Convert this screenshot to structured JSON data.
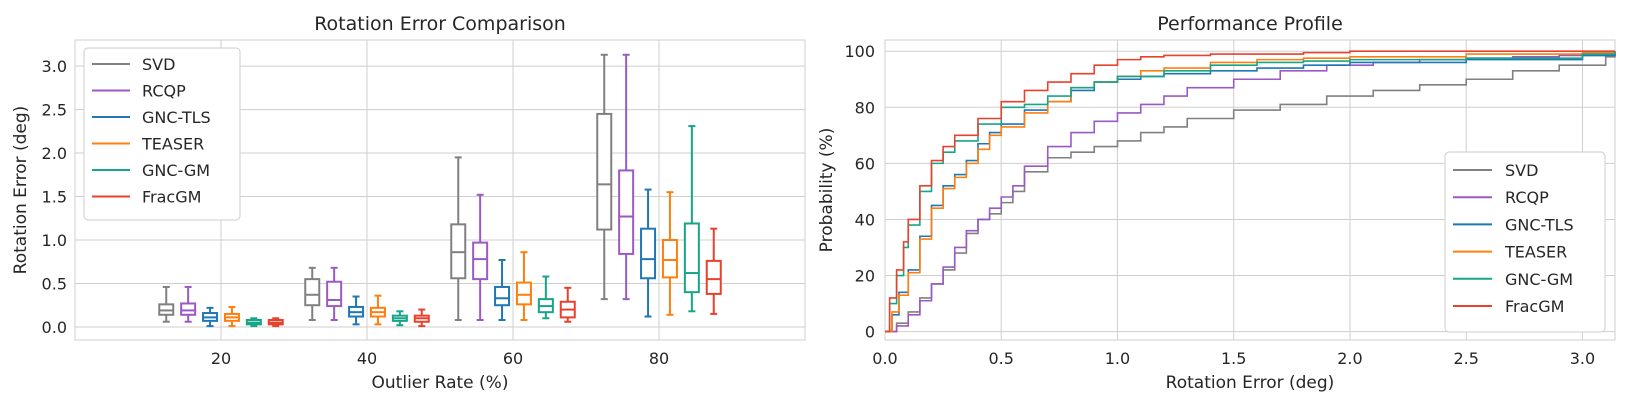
{
  "colors": {
    "SVD": "#808080",
    "RCQP": "#9b59c6",
    "GNC-TLS": "#1f77b4",
    "TEASER": "#ff7f0e",
    "GNC-GM": "#17a589",
    "FracGM": "#e8412c"
  },
  "chart_data": [
    {
      "type": "box",
      "title": "Rotation Error Comparison",
      "xlabel": "Outlier Rate (%)",
      "ylabel": "Rotation Error (deg)",
      "xlim": [
        0,
        100
      ],
      "ylim": [
        -0.15,
        3.3
      ],
      "xticks": [
        "20",
        "40",
        "60",
        "80"
      ],
      "xtick_values": [
        20,
        40,
        60,
        80
      ],
      "yticks": [
        "0.0",
        "0.5",
        "1.0",
        "1.5",
        "2.0",
        "2.5",
        "3.0"
      ],
      "ytick_values": [
        0,
        0.5,
        1.0,
        1.5,
        2.0,
        2.5,
        3.0
      ],
      "group_offsets": [
        -7.5,
        -4.5,
        -1.5,
        1.5,
        4.5,
        7.5
      ],
      "legend": [
        "SVD",
        "RCQP",
        "GNC-TLS",
        "TEASER",
        "GNC-GM",
        "FracGM"
      ],
      "legend_loc": "upper-left",
      "series": [
        {
          "name": "SVD",
          "boxes": [
            {
              "x": 20,
              "min": 0.06,
              "q1": 0.14,
              "median": 0.19,
              "q3": 0.26,
              "max": 0.46
            },
            {
              "x": 40,
              "min": 0.08,
              "q1": 0.25,
              "median": 0.37,
              "q3": 0.55,
              "max": 0.68
            },
            {
              "x": 60,
              "min": 0.08,
              "q1": 0.56,
              "median": 0.86,
              "q3": 1.18,
              "max": 1.95
            },
            {
              "x": 80,
              "min": 0.32,
              "q1": 1.12,
              "median": 1.64,
              "q3": 2.45,
              "max": 3.13
            }
          ]
        },
        {
          "name": "RCQP",
          "boxes": [
            {
              "x": 20,
              "min": 0.06,
              "q1": 0.14,
              "median": 0.19,
              "q3": 0.27,
              "max": 0.46
            },
            {
              "x": 40,
              "min": 0.08,
              "q1": 0.24,
              "median": 0.31,
              "q3": 0.52,
              "max": 0.68
            },
            {
              "x": 60,
              "min": 0.08,
              "q1": 0.55,
              "median": 0.78,
              "q3": 0.97,
              "max": 1.52
            },
            {
              "x": 80,
              "min": 0.32,
              "q1": 0.84,
              "median": 1.27,
              "q3": 1.8,
              "max": 3.13
            }
          ]
        },
        {
          "name": "GNC-TLS",
          "boxes": [
            {
              "x": 20,
              "min": 0.01,
              "q1": 0.07,
              "median": 0.11,
              "q3": 0.16,
              "max": 0.22
            },
            {
              "x": 40,
              "min": 0.03,
              "q1": 0.12,
              "median": 0.17,
              "q3": 0.23,
              "max": 0.35
            },
            {
              "x": 60,
              "min": 0.08,
              "q1": 0.25,
              "median": 0.33,
              "q3": 0.46,
              "max": 0.77
            },
            {
              "x": 80,
              "min": 0.12,
              "q1": 0.56,
              "median": 0.78,
              "q3": 1.13,
              "max": 1.58
            }
          ]
        },
        {
          "name": "TEASER",
          "boxes": [
            {
              "x": 20,
              "min": 0.01,
              "q1": 0.07,
              "median": 0.11,
              "q3": 0.15,
              "max": 0.23
            },
            {
              "x": 40,
              "min": 0.03,
              "q1": 0.12,
              "median": 0.17,
              "q3": 0.22,
              "max": 0.36
            },
            {
              "x": 60,
              "min": 0.08,
              "q1": 0.26,
              "median": 0.37,
              "q3": 0.51,
              "max": 0.86
            },
            {
              "x": 80,
              "min": 0.14,
              "q1": 0.57,
              "median": 0.77,
              "q3": 1.0,
              "max": 1.55
            }
          ]
        },
        {
          "name": "GNC-GM",
          "boxes": [
            {
              "x": 20,
              "min": 0.01,
              "q1": 0.03,
              "median": 0.05,
              "q3": 0.08,
              "max": 0.1
            },
            {
              "x": 40,
              "min": 0.02,
              "q1": 0.07,
              "median": 0.1,
              "q3": 0.13,
              "max": 0.18
            },
            {
              "x": 60,
              "min": 0.1,
              "q1": 0.17,
              "median": 0.24,
              "q3": 0.32,
              "max": 0.58
            },
            {
              "x": 80,
              "min": 0.18,
              "q1": 0.4,
              "median": 0.62,
              "q3": 1.19,
              "max": 2.31
            }
          ]
        },
        {
          "name": "FracGM",
          "boxes": [
            {
              "x": 20,
              "min": 0.01,
              "q1": 0.03,
              "median": 0.05,
              "q3": 0.08,
              "max": 0.1
            },
            {
              "x": 40,
              "min": 0.01,
              "q1": 0.06,
              "median": 0.1,
              "q3": 0.13,
              "max": 0.2
            },
            {
              "x": 60,
              "min": 0.06,
              "q1": 0.11,
              "median": 0.2,
              "q3": 0.29,
              "max": 0.45
            },
            {
              "x": 80,
              "min": 0.15,
              "q1": 0.38,
              "median": 0.55,
              "q3": 0.76,
              "max": 1.13
            }
          ]
        }
      ]
    },
    {
      "type": "line",
      "title": "Performance Profile",
      "xlabel": "Rotation Error (deg)",
      "ylabel": "Probability (%)",
      "xlim": [
        0,
        3.14
      ],
      "ylim": [
        -3,
        104
      ],
      "xticks": [
        "0.0",
        "0.5",
        "1.0",
        "1.5",
        "2.0",
        "2.5",
        "3.0"
      ],
      "xtick_values": [
        0,
        0.5,
        1.0,
        1.5,
        2.0,
        2.5,
        3.0
      ],
      "yticks": [
        "0",
        "20",
        "40",
        "60",
        "80",
        "100"
      ],
      "ytick_values": [
        0,
        20,
        40,
        60,
        80,
        100
      ],
      "legend": [
        "SVD",
        "RCQP",
        "GNC-TLS",
        "TEASER",
        "GNC-GM",
        "FracGM"
      ],
      "legend_loc": "lower-right",
      "series": [
        {
          "name": "SVD",
          "x": [
            0,
            0.05,
            0.1,
            0.15,
            0.2,
            0.25,
            0.3,
            0.35,
            0.4,
            0.45,
            0.5,
            0.55,
            0.6,
            0.7,
            0.8,
            0.9,
            1.0,
            1.1,
            1.2,
            1.3,
            1.5,
            1.7,
            1.9,
            2.1,
            2.3,
            2.5,
            2.7,
            2.9,
            3.1,
            3.14
          ],
          "y": [
            0,
            3,
            7,
            12,
            17,
            22,
            28,
            35,
            40,
            42,
            46,
            50,
            57,
            62,
            64,
            66,
            68,
            71,
            73,
            76,
            79,
            81,
            84,
            86,
            88,
            90,
            93,
            95,
            98,
            99
          ]
        },
        {
          "name": "RCQP",
          "x": [
            0,
            0.05,
            0.1,
            0.15,
            0.2,
            0.25,
            0.3,
            0.35,
            0.4,
            0.45,
            0.5,
            0.55,
            0.6,
            0.7,
            0.8,
            0.9,
            1.0,
            1.1,
            1.2,
            1.3,
            1.5,
            1.7,
            1.9,
            2.1,
            2.3,
            2.5,
            2.7,
            2.9,
            3.1,
            3.14
          ],
          "y": [
            0,
            2,
            6,
            11,
            17,
            23,
            30,
            36,
            40,
            44,
            48,
            52,
            59,
            66,
            71,
            75,
            78,
            81,
            84,
            87,
            90,
            93,
            95,
            96,
            97,
            97.5,
            98,
            98.5,
            99,
            99.5
          ]
        },
        {
          "name": "GNC-TLS",
          "x": [
            0,
            0.03,
            0.06,
            0.1,
            0.15,
            0.2,
            0.25,
            0.3,
            0.35,
            0.4,
            0.45,
            0.5,
            0.6,
            0.7,
            0.8,
            0.9,
            1.0,
            1.1,
            1.2,
            1.4,
            1.6,
            1.8,
            2.0,
            2.5,
            3.0,
            3.14
          ],
          "y": [
            0,
            6,
            14,
            22,
            34,
            45,
            52,
            56,
            61,
            67,
            71,
            74,
            79,
            82,
            86,
            89,
            90,
            91,
            92,
            93,
            94,
            95,
            96,
            97,
            98.5,
            100
          ]
        },
        {
          "name": "TEASER",
          "x": [
            0,
            0.03,
            0.06,
            0.1,
            0.15,
            0.2,
            0.25,
            0.3,
            0.35,
            0.4,
            0.45,
            0.5,
            0.6,
            0.7,
            0.8,
            0.9,
            1.0,
            1.1,
            1.2,
            1.4,
            1.6,
            1.8,
            2.0,
            2.5,
            3.0,
            3.14
          ],
          "y": [
            0,
            7,
            13,
            21,
            33,
            44,
            51,
            55,
            60,
            65,
            70,
            73,
            78,
            82,
            87,
            89,
            91,
            93,
            94,
            96,
            97,
            97.5,
            98,
            99,
            99.5,
            100
          ]
        },
        {
          "name": "GNC-GM",
          "x": [
            0,
            0.02,
            0.05,
            0.08,
            0.1,
            0.15,
            0.2,
            0.25,
            0.3,
            0.4,
            0.5,
            0.6,
            0.7,
            0.8,
            0.9,
            1.0,
            1.2,
            1.4,
            1.6,
            1.8,
            2.0,
            2.5,
            3.0,
            3.14
          ],
          "y": [
            0,
            10,
            20,
            30,
            38,
            50,
            60,
            64,
            68,
            74,
            80,
            81,
            84,
            87,
            89,
            91,
            93,
            95,
            96,
            96.5,
            97,
            97.5,
            99,
            100
          ]
        },
        {
          "name": "FracGM",
          "x": [
            0,
            0.02,
            0.05,
            0.08,
            0.1,
            0.15,
            0.2,
            0.25,
            0.3,
            0.4,
            0.5,
            0.6,
            0.7,
            0.8,
            0.9,
            1.0,
            1.1,
            1.2,
            1.4,
            1.6,
            1.8,
            2.0,
            2.5,
            3.0,
            3.14
          ],
          "y": [
            0,
            12,
            22,
            32,
            40,
            52,
            61,
            66,
            70,
            76,
            82,
            86,
            89,
            92,
            95,
            97,
            98,
            98.5,
            99,
            99,
            99.5,
            100,
            100,
            100,
            100
          ]
        }
      ]
    }
  ]
}
